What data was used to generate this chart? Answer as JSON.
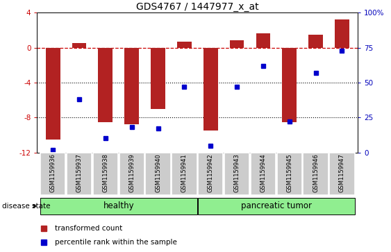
{
  "title": "GDS4767 / 1447977_x_at",
  "samples": [
    "GSM1159936",
    "GSM1159937",
    "GSM1159938",
    "GSM1159939",
    "GSM1159940",
    "GSM1159941",
    "GSM1159942",
    "GSM1159943",
    "GSM1159944",
    "GSM1159945",
    "GSM1159946",
    "GSM1159947"
  ],
  "bar_values": [
    -10.5,
    0.5,
    -8.5,
    -8.8,
    -7.0,
    0.7,
    -9.5,
    0.8,
    1.6,
    -8.5,
    1.5,
    3.2
  ],
  "dot_values": [
    2,
    38,
    10,
    18,
    17,
    47,
    5,
    47,
    62,
    22,
    57,
    73
  ],
  "bar_color": "#b22222",
  "dot_color": "#0000cc",
  "ylim_left": [
    -12,
    4
  ],
  "ylim_right": [
    0,
    100
  ],
  "yticks_left": [
    -12,
    -8,
    -4,
    0,
    4
  ],
  "yticks_right": [
    0,
    25,
    50,
    75,
    100
  ],
  "hline_y": 0,
  "dotted_lines": [
    -4,
    -8
  ],
  "background_color": "#ffffff",
  "title_fontsize": 10,
  "tick_fontsize": 7.5,
  "sample_fontsize": 6,
  "group_fontsize": 8.5,
  "legend_fontsize": 7.5,
  "disease_fontsize": 7.5
}
